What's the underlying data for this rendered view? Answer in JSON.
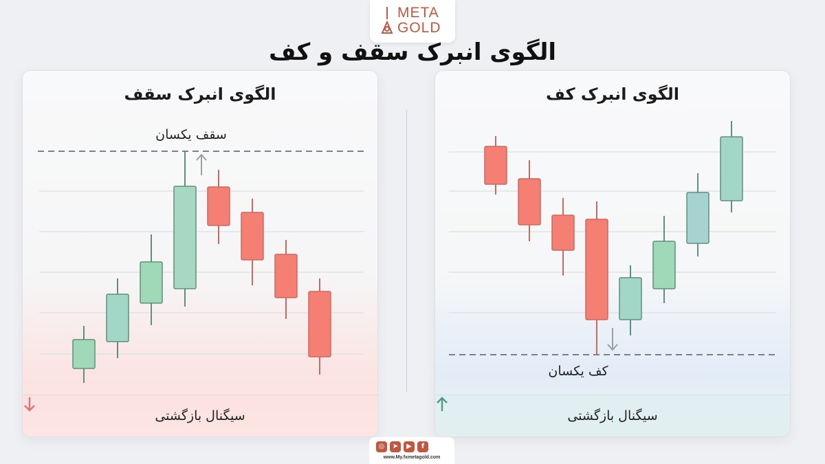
{
  "logo": {
    "line1": "META",
    "line2": "GOLD",
    "brand_color": "#c0573f"
  },
  "title": "الگوی انبرک سقف و کف",
  "top_panel": {
    "title": "الگوی انبرک سقف",
    "level_label": "سقف یکسان",
    "signal_label": "سیگنال بازگشتی",
    "signal_icon": "arrow-down-icon",
    "signal_color": "#d9776d"
  },
  "bottom_panel": {
    "title": "الگوی انبرک کف",
    "level_label": "کف یکسان",
    "signal_label": "سیگنال بازگشتی",
    "signal_icon": "arrow-up-icon",
    "signal_color": "#4f9c7d"
  },
  "colors": {
    "bullish": "#9fd9b8",
    "bearish": "#f57f73"
  },
  "footer": {
    "icons": [
      "instagram-icon",
      "telegram-icon",
      "youtube-icon",
      "facebook-icon"
    ],
    "url": "www.My.fxmetagold.com"
  }
}
